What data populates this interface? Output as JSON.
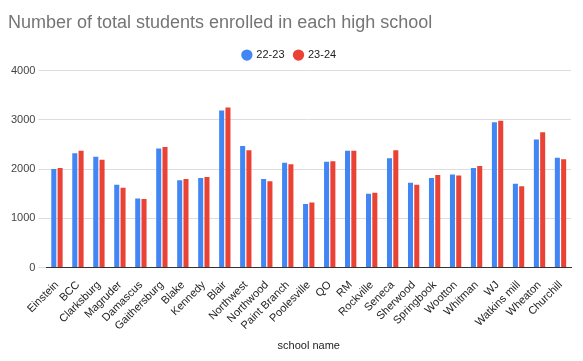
{
  "chart_data": {
    "type": "bar",
    "title": "Number of total students enrolled in each high school",
    "x_label": "school name",
    "categories": [
      "Einstein",
      "BCC",
      "Clarksburg",
      "Magruder",
      "Damascus",
      "Gaithersburg",
      "Blake",
      "Kennedy",
      "Blair",
      "Northwest",
      "Northwood",
      "Paint Branch",
      "Poolesville",
      "QO",
      "RM",
      "Rockville",
      "Seneca",
      "Sherwood",
      "Springbook",
      "Wootton",
      "Whitman",
      "WJ",
      "Watkins mill",
      "Wheaton",
      "Churchill"
    ],
    "series": [
      {
        "name": "22-23",
        "color": "#4285f4",
        "values": [
          2000,
          2320,
          2250,
          1680,
          1400,
          2420,
          1770,
          1820,
          3190,
          2470,
          1800,
          2130,
          1290,
          2150,
          2370,
          1500,
          2220,
          1720,
          1820,
          1890,
          2020,
          2950,
          1700,
          2600,
          2230
        ]
      },
      {
        "name": "23-24",
        "color": "#ea4335",
        "values": [
          2020,
          2370,
          2190,
          1620,
          1390,
          2450,
          1800,
          1840,
          3250,
          2380,
          1750,
          2100,
          1320,
          2160,
          2370,
          1520,
          2380,
          1680,
          1880,
          1870,
          2060,
          2980,
          1650,
          2750,
          2200
        ]
      }
    ],
    "ylim": [
      0,
      4000
    ],
    "yticks": [
      0,
      1000,
      2000,
      3000,
      4000
    ],
    "grid": true,
    "legend": "top"
  }
}
